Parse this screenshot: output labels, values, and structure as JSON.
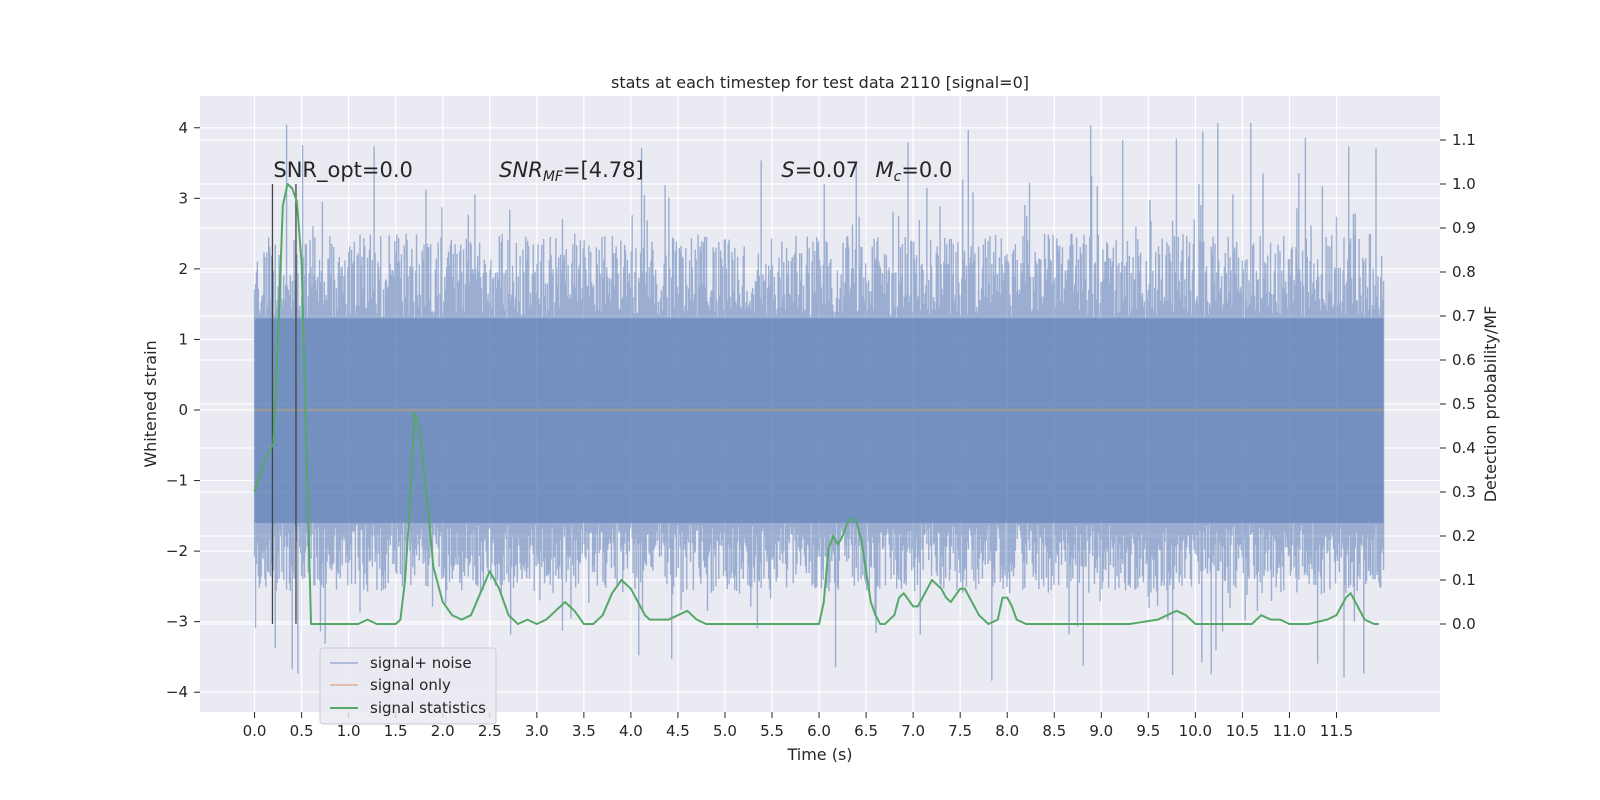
{
  "chart_data": {
    "type": "line",
    "title": "stats at each timestep for test data 2110 [signal=0]",
    "xlabel": "Time (s)",
    "ylabel": "Whitened strain",
    "ylabel_right": "Detection probability/MF",
    "xlim": [
      -0.58,
      12.6
    ],
    "ylim": [
      -4.28,
      4.45
    ],
    "ylim_right": [
      -0.2,
      1.2
    ],
    "x_ticks": [
      0.0,
      0.5,
      1.0,
      1.5,
      2.0,
      2.5,
      3.0,
      3.5,
      4.0,
      4.5,
      5.0,
      5.5,
      6.0,
      6.5,
      7.0,
      7.5,
      8.0,
      8.5,
      9.0,
      9.5,
      10.0,
      10.5,
      11.0,
      11.5
    ],
    "x_tick_labels": [
      "0.0",
      "0.5",
      "1.0",
      "1.5",
      "2.0",
      "2.5",
      "3.0",
      "3.5",
      "4.0",
      "4.5",
      "5.0",
      "5.5",
      "6.0",
      "6.5",
      "7.0",
      "7.5",
      "8.0",
      "8.5",
      "9.0",
      "9.5",
      "10.0",
      "10.5",
      "11.0",
      "11.5"
    ],
    "y_ticks": [
      -4,
      -3,
      -2,
      -1,
      0,
      1,
      2,
      3,
      4
    ],
    "y_tick_labels": [
      "−4",
      "−3",
      "−2",
      "−1",
      "0",
      "1",
      "2",
      "3",
      "4"
    ],
    "y_right_ticks": [
      0.0,
      0.1,
      0.2,
      0.3,
      0.4,
      0.5,
      0.6,
      0.7,
      0.8,
      0.9,
      1.0,
      1.1
    ],
    "y_right_tick_labels": [
      "0.0",
      "0.1",
      "0.2",
      "0.3",
      "0.4",
      "0.5",
      "0.6",
      "0.7",
      "0.8",
      "0.9",
      "1.0",
      "1.1"
    ],
    "grid": true,
    "legend_position": "lower-left",
    "legend": [
      "signal+ noise",
      "signal only",
      "signal statistics"
    ],
    "annotations": [
      {
        "text": "SNR_opt=0.0",
        "x": 0.2,
        "y": 3.3
      },
      {
        "text": "SNR_MF=[4.78]",
        "x": 2.6,
        "y": 3.3
      },
      {
        "text": "S=0.07",
        "x": 5.6,
        "y": 3.3
      },
      {
        "text": "M_c=0.0",
        "x": 6.6,
        "y": 3.3
      }
    ],
    "vertical_markers": [
      0.19,
      0.44
    ],
    "series": [
      {
        "name": "signal+ noise",
        "axis": "left",
        "color": "#4c72b0",
        "x_range": [
          0.0,
          12.0
        ],
        "sample_count": 1200,
        "envelope_low": -1.6,
        "envelope_high": 1.3,
        "peak_max": 4.1,
        "peak_min": -3.9
      },
      {
        "name": "signal only",
        "axis": "left",
        "color": "#dd8452",
        "x": [
          0.0,
          12.0
        ],
        "y": [
          0.0,
          0.0
        ]
      },
      {
        "name": "signal statistics",
        "axis": "right",
        "color": "#55a868",
        "x": [
          0.0,
          0.1,
          0.2,
          0.25,
          0.3,
          0.35,
          0.4,
          0.45,
          0.5,
          0.6,
          0.65,
          0.75,
          0.9,
          1.0,
          1.1,
          1.2,
          1.3,
          1.4,
          1.5,
          1.55,
          1.6,
          1.65,
          1.7,
          1.75,
          1.8,
          1.85,
          1.9,
          2.0,
          2.1,
          2.2,
          2.3,
          2.4,
          2.5,
          2.55,
          2.6,
          2.65,
          2.7,
          2.75,
          2.8,
          2.9,
          3.0,
          3.1,
          3.2,
          3.3,
          3.35,
          3.4,
          3.5,
          3.6,
          3.7,
          3.8,
          3.9,
          4.0,
          4.05,
          4.1,
          4.15,
          4.2,
          4.3,
          4.4,
          4.5,
          4.6,
          4.65,
          4.7,
          4.8,
          5.0,
          5.5,
          6.0,
          6.05,
          6.1,
          6.15,
          6.2,
          6.25,
          6.3,
          6.35,
          6.4,
          6.45,
          6.5,
          6.55,
          6.6,
          6.65,
          6.7,
          6.8,
          6.85,
          6.9,
          7.0,
          7.05,
          7.1,
          7.2,
          7.3,
          7.35,
          7.4,
          7.5,
          7.55,
          7.6,
          7.7,
          7.8,
          7.9,
          7.95,
          8.0,
          8.05,
          8.1,
          8.2,
          8.5,
          9.0,
          9.3,
          9.6,
          9.7,
          9.8,
          9.9,
          10.0,
          10.3,
          10.6,
          10.7,
          10.8,
          10.9,
          11.0,
          11.2,
          11.4,
          11.5,
          11.55,
          11.6,
          11.65,
          11.7,
          11.8,
          11.9,
          11.95
        ],
        "y": [
          0.3,
          0.37,
          0.41,
          0.65,
          0.95,
          1.0,
          0.99,
          0.96,
          0.82,
          0.0,
          0.0,
          0.0,
          0.0,
          0.0,
          0.0,
          0.01,
          0.0,
          0.0,
          0.0,
          0.01,
          0.1,
          0.27,
          0.48,
          0.45,
          0.35,
          0.25,
          0.13,
          0.05,
          0.02,
          0.01,
          0.02,
          0.07,
          0.12,
          0.1,
          0.08,
          0.05,
          0.02,
          0.01,
          0.0,
          0.01,
          0.0,
          0.01,
          0.03,
          0.05,
          0.04,
          0.03,
          0.0,
          0.0,
          0.02,
          0.07,
          0.1,
          0.08,
          0.06,
          0.04,
          0.02,
          0.01,
          0.01,
          0.01,
          0.02,
          0.03,
          0.02,
          0.01,
          0.0,
          0.0,
          0.0,
          0.0,
          0.05,
          0.17,
          0.2,
          0.18,
          0.2,
          0.23,
          0.24,
          0.23,
          0.19,
          0.12,
          0.05,
          0.02,
          0.0,
          0.0,
          0.02,
          0.06,
          0.07,
          0.04,
          0.04,
          0.06,
          0.1,
          0.08,
          0.06,
          0.05,
          0.08,
          0.08,
          0.06,
          0.02,
          0.0,
          0.01,
          0.06,
          0.06,
          0.04,
          0.01,
          0.0,
          0.0,
          0.0,
          0.0,
          0.01,
          0.02,
          0.03,
          0.02,
          0.0,
          0.0,
          0.0,
          0.02,
          0.01,
          0.01,
          0.0,
          0.0,
          0.01,
          0.02,
          0.04,
          0.06,
          0.07,
          0.05,
          0.01,
          0.0,
          0.0
        ]
      }
    ]
  }
}
